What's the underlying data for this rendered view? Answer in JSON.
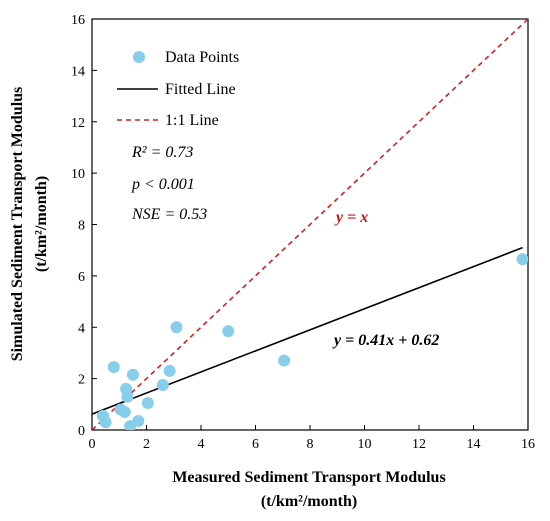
{
  "chart_data": {
    "type": "scatter",
    "xlim": [
      0,
      16
    ],
    "ylim": [
      0,
      16
    ],
    "x_ticks": [
      0,
      2,
      4,
      6,
      8,
      10,
      12,
      14,
      16
    ],
    "y_ticks": [
      0,
      2,
      4,
      6,
      8,
      10,
      12,
      14,
      16
    ],
    "xlabel_line1": "Measured Sediment Transport Modulus",
    "xlabel_line2": "(t/km²/month)",
    "ylabel_line1": "Simulated Sediment Transport Modulus",
    "ylabel_line2": "(t/km²/month)",
    "legend": {
      "placement": "top-left",
      "items": [
        "Data Points",
        "Fitted Line",
        "1:1 Line"
      ]
    },
    "stats": [
      "R² = 0.73",
      "p < 0.001",
      "NSE = 0.53"
    ],
    "fit_equation": "y = 0.41x + 0.62",
    "identity_label": "y = x",
    "fit": {
      "slope": 0.41,
      "intercept": 0.62,
      "x_range": [
        0,
        15.8
      ]
    },
    "colors": {
      "points": "#87ceeb",
      "fit_line": "#000000",
      "identity_line": "#d42020"
    },
    "points": [
      {
        "x": 0.4,
        "y": 0.55
      },
      {
        "x": 0.5,
        "y": 0.3
      },
      {
        "x": 0.8,
        "y": 2.45
      },
      {
        "x": 1.05,
        "y": 0.8
      },
      {
        "x": 1.2,
        "y": 0.7
      },
      {
        "x": 1.25,
        "y": 1.6
      },
      {
        "x": 1.3,
        "y": 1.3
      },
      {
        "x": 1.4,
        "y": 0.15
      },
      {
        "x": 1.5,
        "y": 2.15
      },
      {
        "x": 1.7,
        "y": 0.35
      },
      {
        "x": 2.05,
        "y": 1.05
      },
      {
        "x": 2.6,
        "y": 1.75
      },
      {
        "x": 2.85,
        "y": 2.3
      },
      {
        "x": 3.1,
        "y": 4.0
      },
      {
        "x": 5.0,
        "y": 3.85
      },
      {
        "x": 7.05,
        "y": 2.7
      },
      {
        "x": 15.8,
        "y": 6.65
      }
    ]
  }
}
